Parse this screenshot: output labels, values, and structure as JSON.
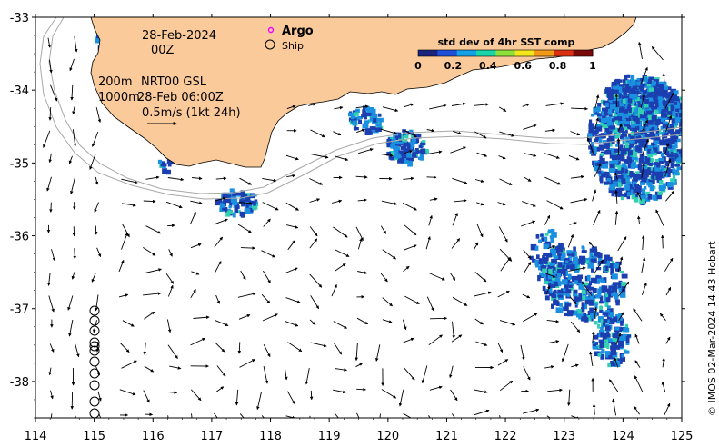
{
  "map": {
    "lon_range": [
      114,
      125
    ],
    "lat_range": [
      -38.5,
      -33
    ],
    "x_ticks": [
      "114",
      "115",
      "116",
      "117",
      "118",
      "119",
      "120",
      "121",
      "122",
      "123",
      "124",
      "125"
    ],
    "y_ticks": [
      "-33",
      "-34",
      "-35",
      "-36",
      "-37",
      "-38"
    ],
    "contour_depths_label": "200m",
    "contour_depths_label2": "1000m"
  },
  "annotations": {
    "date": "28-Feb-2024",
    "hour": "00Z",
    "product": "NRT00 GSL",
    "product_time": "28-Feb 06:00Z",
    "scale": "0.5m/s (1kt 24h)"
  },
  "legend": {
    "argo": "Argo",
    "ship": "Ship",
    "argo_color": "#ff00ff"
  },
  "colorbar": {
    "title": "std dev of 4hr SST comp",
    "ticks": [
      "0",
      "0.2",
      "0.4",
      "0.6",
      "0.8",
      "1"
    ],
    "colors": [
      "#1a237e",
      "#1e4fd8",
      "#12a0e6",
      "#18d6a8",
      "#8ee03a",
      "#f2e61c",
      "#f29a18",
      "#d83010",
      "#7a0a0a"
    ]
  },
  "colors": {
    "land": "#fbca9b",
    "sst_low": "#1b3fb0",
    "sst_mid": "#1a90e0",
    "sst_high": "#30d0b0",
    "contour": "#a8a8a8"
  },
  "credit": "© IMOS 02-Mar-2024 14:43 Hobart"
}
